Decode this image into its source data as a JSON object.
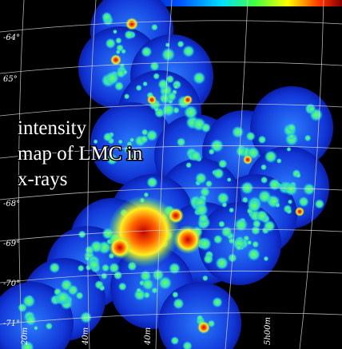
{
  "caption": {
    "lines": [
      "intensity",
      "map of LMC in",
      "x-rays"
    ]
  },
  "axis_labels": {
    "dec": [
      "-64°",
      "65°",
      "-68°",
      "-69°",
      "-70°",
      "-71°"
    ],
    "ra": [
      "20m",
      "40m",
      "40m",
      "5h00m"
    ]
  }
}
